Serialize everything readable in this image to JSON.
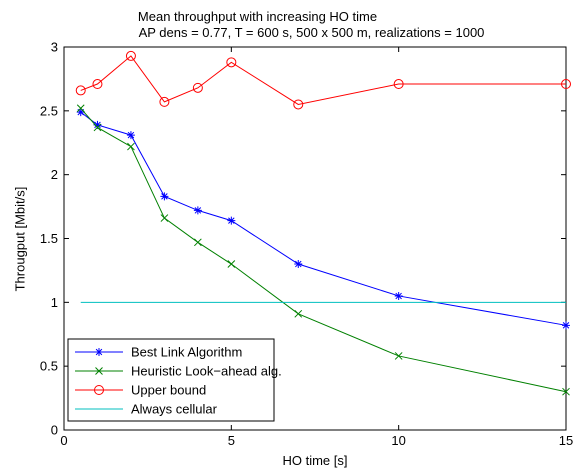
{
  "chart_data": {
    "type": "line",
    "title": "Mean throughput with increasing HO time",
    "subtitle": "AP dens = 0.77, T = 600 s, 500 x 500 m, realizations = 1000",
    "xlabel": "HO time [s]",
    "ylabel": "Througput [Mbit/s]",
    "xlim": [
      0,
      15
    ],
    "ylim": [
      0,
      3
    ],
    "xticks": [
      "0",
      "5",
      "10",
      "15"
    ],
    "yticks": [
      "0",
      "0.5",
      "1",
      "1.5",
      "2",
      "2.5",
      "3"
    ],
    "grid": false,
    "legend_position": "bottom-left",
    "series": [
      {
        "name": "Best Link Algorithm",
        "color": "#0000ff",
        "marker": "asterisk",
        "x": [
          0.5,
          1,
          2,
          3,
          4,
          5,
          7,
          10,
          15
        ],
        "y": [
          2.49,
          2.39,
          2.31,
          1.83,
          1.72,
          1.64,
          1.3,
          1.05,
          0.82
        ]
      },
      {
        "name": "Heuristic Look−ahead alg.",
        "color": "#008000",
        "marker": "x",
        "x": [
          0.5,
          1,
          2,
          3,
          4,
          5,
          7,
          10,
          15
        ],
        "y": [
          2.52,
          2.37,
          2.22,
          1.66,
          1.47,
          1.3,
          0.91,
          0.58,
          0.3
        ]
      },
      {
        "name": "Upper bound",
        "color": "#ff0000",
        "marker": "circle",
        "x": [
          0.5,
          1,
          2,
          3,
          4,
          5,
          7,
          10,
          15
        ],
        "y": [
          2.66,
          2.71,
          2.93,
          2.57,
          2.68,
          2.88,
          2.55,
          2.71,
          2.71
        ]
      },
      {
        "name": "Always cellular",
        "color": "#00bfbf",
        "marker": "none",
        "x": [
          0.5,
          15
        ],
        "y": [
          1.0,
          1.0
        ]
      }
    ]
  }
}
